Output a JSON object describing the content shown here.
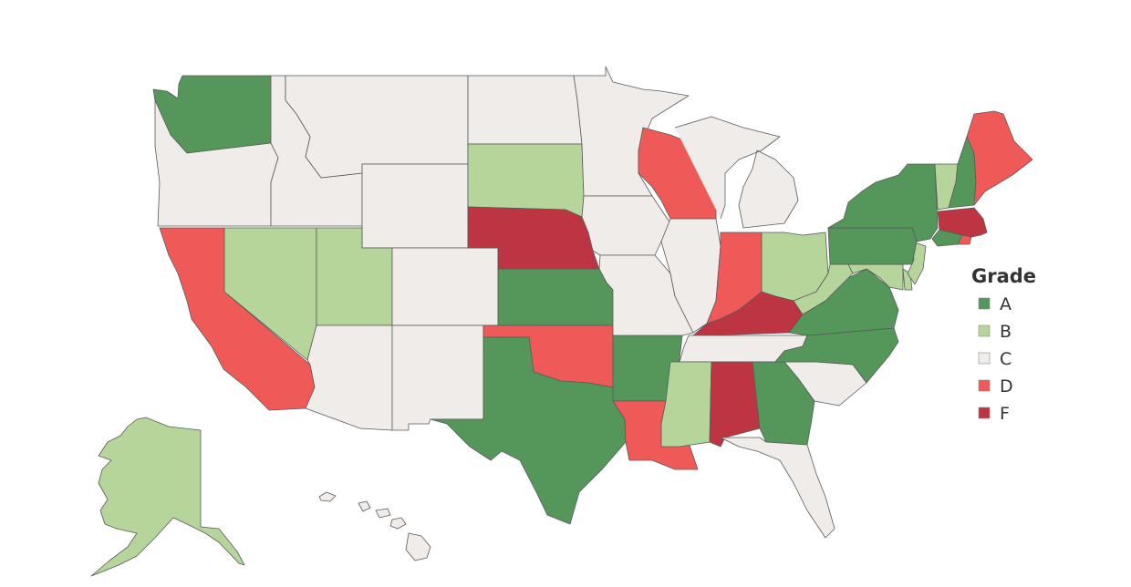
{
  "colors": {
    "A": "#55975a",
    "B": "#b5d59b",
    "C": "#efecea",
    "D": "#ef5a59",
    "F": "#bd3543"
  },
  "legend": {
    "title": "Grade",
    "items": [
      {
        "grade": "A",
        "label": "A"
      },
      {
        "grade": "B",
        "label": "B"
      },
      {
        "grade": "C",
        "label": "C"
      },
      {
        "grade": "D",
        "label": "D"
      },
      {
        "grade": "F",
        "label": "F"
      }
    ]
  },
  "states": [
    {
      "id": "WA",
      "grade": "A"
    },
    {
      "id": "OR",
      "grade": "C"
    },
    {
      "id": "CA",
      "grade": "D"
    },
    {
      "id": "NV",
      "grade": "B"
    },
    {
      "id": "ID",
      "grade": "C"
    },
    {
      "id": "MT",
      "grade": "C"
    },
    {
      "id": "WY",
      "grade": "C"
    },
    {
      "id": "UT",
      "grade": "B"
    },
    {
      "id": "AZ",
      "grade": "C"
    },
    {
      "id": "CO",
      "grade": "C"
    },
    {
      "id": "NM",
      "grade": "C"
    },
    {
      "id": "ND",
      "grade": "C"
    },
    {
      "id": "SD",
      "grade": "B"
    },
    {
      "id": "NE",
      "grade": "F"
    },
    {
      "id": "KS",
      "grade": "A"
    },
    {
      "id": "OK",
      "grade": "D"
    },
    {
      "id": "TX",
      "grade": "A"
    },
    {
      "id": "MN",
      "grade": "C"
    },
    {
      "id": "IA",
      "grade": "C"
    },
    {
      "id": "MO",
      "grade": "C"
    },
    {
      "id": "AR",
      "grade": "A"
    },
    {
      "id": "LA",
      "grade": "D"
    },
    {
      "id": "WI",
      "grade": "D"
    },
    {
      "id": "IL",
      "grade": "C"
    },
    {
      "id": "MI",
      "grade": "C"
    },
    {
      "id": "IN",
      "grade": "D"
    },
    {
      "id": "OH",
      "grade": "B"
    },
    {
      "id": "KY",
      "grade": "F"
    },
    {
      "id": "TN",
      "grade": "C"
    },
    {
      "id": "MS",
      "grade": "B"
    },
    {
      "id": "AL",
      "grade": "F"
    },
    {
      "id": "GA",
      "grade": "A"
    },
    {
      "id": "FL",
      "grade": "C"
    },
    {
      "id": "SC",
      "grade": "C"
    },
    {
      "id": "NC",
      "grade": "A"
    },
    {
      "id": "VA",
      "grade": "A"
    },
    {
      "id": "WV",
      "grade": "B"
    },
    {
      "id": "MD",
      "grade": "B"
    },
    {
      "id": "DE",
      "grade": "B"
    },
    {
      "id": "NJ",
      "grade": "B"
    },
    {
      "id": "PA",
      "grade": "A"
    },
    {
      "id": "NY",
      "grade": "A"
    },
    {
      "id": "CT",
      "grade": "A"
    },
    {
      "id": "RI",
      "grade": "D"
    },
    {
      "id": "MA",
      "grade": "F"
    },
    {
      "id": "VT",
      "grade": "B"
    },
    {
      "id": "NH",
      "grade": "A"
    },
    {
      "id": "ME",
      "grade": "D"
    },
    {
      "id": "AK",
      "grade": "B"
    },
    {
      "id": "HI",
      "grade": "C"
    }
  ]
}
